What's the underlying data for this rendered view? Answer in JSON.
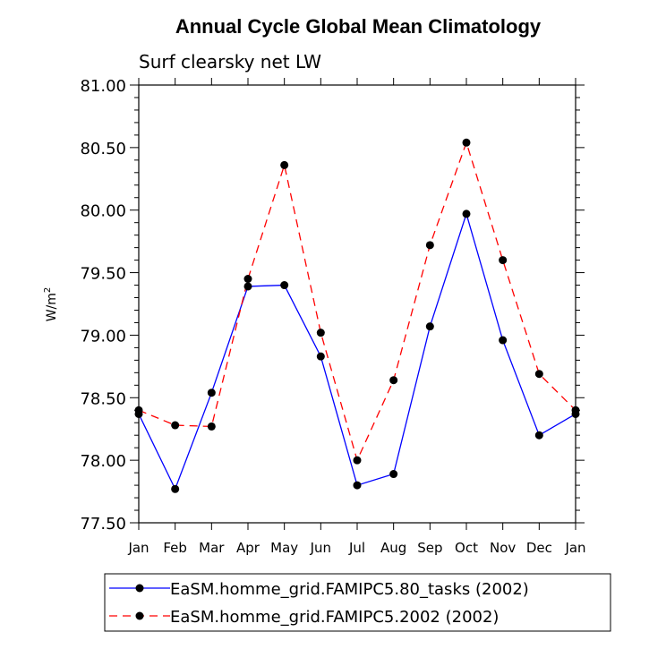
{
  "chart_data": {
    "type": "line",
    "title": "Annual Cycle Global Mean Climatology",
    "subtitle": "Surf clearsky net LW",
    "xlabel": "",
    "ylabel": "W/m",
    "ylabel_superscript": "2",
    "categories": [
      "Jan",
      "Feb",
      "Mar",
      "Apr",
      "May",
      "Jun",
      "Jul",
      "Aug",
      "Sep",
      "Oct",
      "Nov",
      "Dec",
      "Jan"
    ],
    "ylim": [
      77.5,
      81.0
    ],
    "yticks": [
      "77.50",
      "78.00",
      "78.50",
      "79.00",
      "79.50",
      "80.00",
      "80.50",
      "81.00"
    ],
    "series": [
      {
        "name": "EaSM.homme_grid.FAMIPC5.80_tasks (2002)",
        "color": "#0000ff",
        "dash": "solid",
        "values": [
          78.37,
          77.77,
          78.54,
          79.39,
          79.4,
          78.83,
          77.8,
          77.89,
          79.07,
          79.97,
          78.96,
          78.2,
          78.37
        ]
      },
      {
        "name": "EaSM.homme_grid.FAMIPC5.2002 (2002)",
        "color": "#ff0000",
        "dash": "dashed",
        "values": [
          78.4,
          78.28,
          78.27,
          79.45,
          80.36,
          79.02,
          78.0,
          78.64,
          79.72,
          80.54,
          79.6,
          78.69,
          78.4
        ]
      }
    ],
    "grid": false,
    "legend_position": "bottom"
  }
}
